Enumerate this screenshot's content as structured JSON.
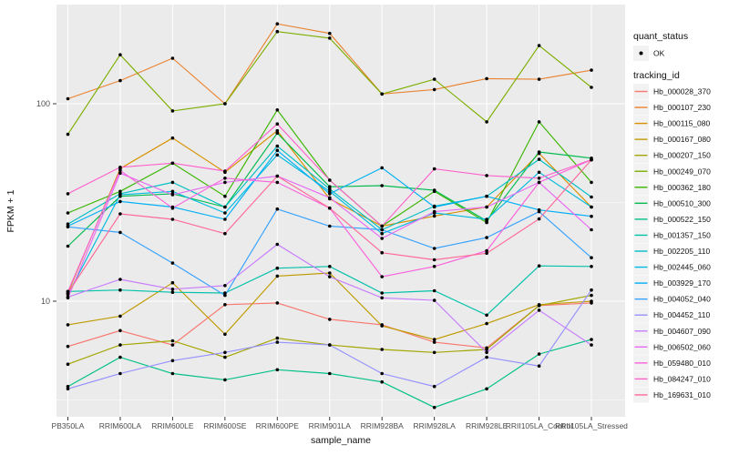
{
  "figure": {
    "background": "#FFFFFF",
    "panel_background": "#EBEBEB",
    "gridline_color": "#FFFFFF",
    "point_color": "#000000",
    "tick_color": "#333333",
    "tick_label_color": "#4D4D4D",
    "axis_title_color": "#111111",
    "legend_key_fill": "#F2F2F2",
    "legend_text_color": "#111111"
  },
  "legend": {
    "quant_status_title": "quant_status",
    "quant_status_value": "OK",
    "tracking_id_title": "tracking_id"
  },
  "chart_data": {
    "type": "line",
    "title": "",
    "xlabel": "sample_name",
    "ylabel": "FPKM + 1",
    "y_scale": "log10",
    "ylim": [
      2.6,
      318
    ],
    "y_ticks": [
      10,
      100
    ],
    "y_minor_ticks": [
      3.162,
      31.623
    ],
    "grid": true,
    "legend_position": "right",
    "point_marker": "black-dot-quant-status-OK",
    "categories": [
      "PB350LA",
      "RRIM600LA",
      "RRIM600LE",
      "RRIM600SE",
      "RRIM600PE",
      "RRIM901LA",
      "RRIM928BA",
      "RRIM928LA",
      "RRIM928LE",
      "RRII105LA_Control",
      "RRII105LA_Stressed"
    ],
    "series": [
      {
        "name": "Hb_000028_370",
        "color": "#F8766D",
        "values": [
          5.9,
          7.1,
          6.0,
          9.6,
          9.8,
          8.1,
          7.6,
          6.2,
          5.8,
          9.5,
          9.8
        ]
      },
      {
        "name": "Hb_000107_230",
        "color": "#EA8331",
        "values": [
          106,
          131,
          170,
          100,
          254,
          227,
          112,
          118,
          134,
          133,
          148
        ]
      },
      {
        "name": "Hb_000115_080",
        "color": "#D89000",
        "values": [
          11,
          47,
          67,
          45,
          73,
          33,
          24,
          27,
          30,
          56,
          30
        ]
      },
      {
        "name": "Hb_000167_080",
        "color": "#C09B00",
        "values": [
          7.6,
          8.4,
          12.4,
          6.8,
          13.4,
          13.9,
          7.5,
          6.4,
          7.7,
          9.6,
          10.0
        ]
      },
      {
        "name": "Hb_000207_150",
        "color": "#A3A500",
        "values": [
          4.8,
          6.0,
          6.3,
          5.2,
          6.5,
          6.0,
          5.7,
          5.5,
          5.7,
          9.5,
          10.7
        ]
      },
      {
        "name": "Hb_000249_070",
        "color": "#7CAE00",
        "values": [
          70,
          177,
          92,
          100,
          232,
          215,
          112,
          133,
          81,
          197,
          121
        ]
      },
      {
        "name": "Hb_000362_180",
        "color": "#39B600",
        "values": [
          28,
          36,
          50,
          34,
          93,
          41,
          24,
          36,
          25,
          81,
          40
        ]
      },
      {
        "name": "Hb_000510_300",
        "color": "#00BB4E",
        "values": [
          19,
          34,
          35,
          30,
          71,
          38,
          38.5,
          36.5,
          25.5,
          57,
          53
        ]
      },
      {
        "name": "Hb_000522_150",
        "color": "#00C087",
        "values": [
          3.7,
          5.2,
          4.3,
          4.0,
          4.5,
          4.3,
          3.9,
          2.9,
          3.6,
          5.4,
          6.4
        ]
      },
      {
        "name": "Hb_001357_150",
        "color": "#00C1A9",
        "values": [
          11.2,
          11.4,
          11.1,
          11.0,
          14.7,
          15.0,
          11.0,
          11.3,
          8.5,
          15.1,
          15.0
        ]
      },
      {
        "name": "Hb_002205_110",
        "color": "#00BFC4",
        "values": [
          24.6,
          35,
          40,
          30,
          61,
          37,
          23,
          30.3,
          34,
          52.3,
          33.7
        ]
      },
      {
        "name": "Hb_002445_060",
        "color": "#00BAE0",
        "values": [
          10.8,
          34.6,
          36,
          28,
          55,
          36,
          22,
          28,
          26,
          45,
          30
        ]
      },
      {
        "name": "Hb_003929_170",
        "color": "#00B0F6",
        "values": [
          24,
          32,
          30,
          26,
          58,
          35,
          47.4,
          30,
          34,
          29,
          26.9
        ]
      },
      {
        "name": "Hb_004052_040",
        "color": "#35A2FF",
        "values": [
          23.8,
          22.3,
          15.6,
          10.7,
          29.3,
          24,
          23,
          18.5,
          21,
          28.4,
          16.6
        ]
      },
      {
        "name": "Hb_004452_110",
        "color": "#9590FF",
        "values": [
          3.6,
          4.3,
          5.0,
          5.5,
          6.2,
          6.0,
          4.3,
          3.7,
          5.2,
          4.7,
          11.4
        ]
      },
      {
        "name": "Hb_004607_090",
        "color": "#C77CFF",
        "values": [
          10.5,
          12.9,
          11.5,
          12.0,
          19.4,
          13.3,
          10.4,
          10.1,
          5.5,
          9.0,
          6.0
        ]
      },
      {
        "name": "Hb_006502_060",
        "color": "#E76BF3",
        "values": [
          10.4,
          44.5,
          34.6,
          40,
          43,
          33.4,
          20.8,
          28.4,
          30,
          40,
          23
        ]
      },
      {
        "name": "Hb_059480_010",
        "color": "#FA62DB",
        "values": [
          11.2,
          46,
          29.6,
          42,
          40,
          29.6,
          13.3,
          15,
          18,
          40,
          52
        ]
      },
      {
        "name": "Hb_084247_010",
        "color": "#FF61CC",
        "values": [
          35,
          47.7,
          50,
          45.6,
          79,
          41,
          24,
          46.8,
          43.3,
          42,
          52
        ]
      },
      {
        "name": "Hb_169631_010",
        "color": "#FF6A98",
        "values": [
          11,
          27.7,
          26,
          22,
          43,
          29.6,
          17.6,
          16.2,
          17.5,
          26.1,
          52
        ]
      }
    ]
  }
}
